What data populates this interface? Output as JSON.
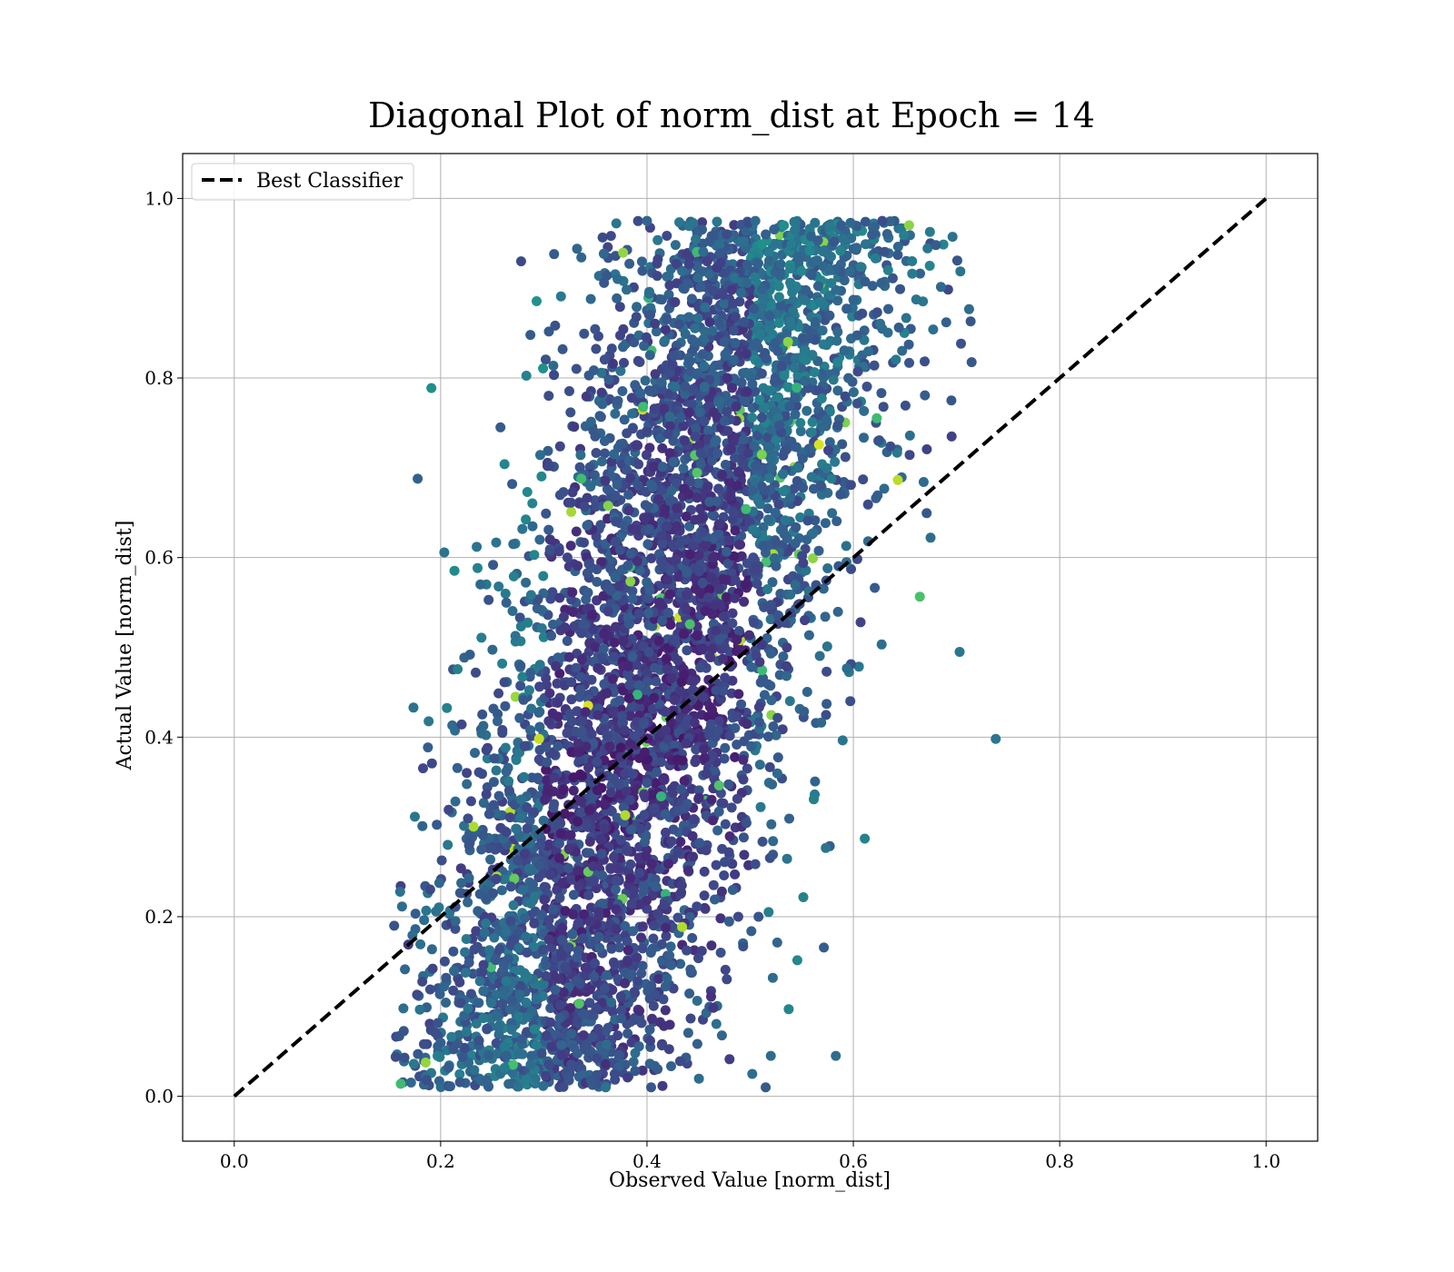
{
  "chart_data": {
    "type": "scatter",
    "title": "Diagonal Plot of norm_dist at Epoch = 14",
    "xlabel": "Observed Value [norm_dist]",
    "ylabel": "Actual Value [norm_dist]",
    "xlim": [
      -0.05,
      1.05
    ],
    "ylim": [
      -0.05,
      1.05
    ],
    "xticks": [
      "0.0",
      "0.2",
      "0.4",
      "0.6",
      "0.8",
      "1.0"
    ],
    "yticks": [
      "0.0",
      "0.2",
      "0.4",
      "0.6",
      "0.8",
      "1.0"
    ],
    "grid": true,
    "legend": {
      "placement": "top-left",
      "entries": [
        "Best Classifier"
      ]
    },
    "colormap": "viridis",
    "reference_line": {
      "name": "Best Classifier",
      "x": [
        0.0,
        1.0
      ],
      "y": [
        0.0,
        1.0
      ],
      "style": "dashed",
      "color": "#000000"
    },
    "scatter_summary": {
      "x_range": [
        0.155,
        0.74
      ],
      "y_range": [
        0.01,
        0.975
      ],
      "density_center": [
        0.43,
        0.5
      ]
    },
    "outlier_points": [
      {
        "x": 0.738,
        "y": 0.398
      },
      {
        "x": 0.703,
        "y": 0.495
      },
      {
        "x": 0.235,
        "y": 0.612
      },
      {
        "x": 0.258,
        "y": 0.745
      },
      {
        "x": 0.278,
        "y": 0.93
      },
      {
        "x": 0.31,
        "y": 0.938
      },
      {
        "x": 0.287,
        "y": 0.848
      },
      {
        "x": 0.36,
        "y": 0.01
      },
      {
        "x": 0.404,
        "y": 0.01
      },
      {
        "x": 0.515,
        "y": 0.01
      },
      {
        "x": 0.583,
        "y": 0.045
      },
      {
        "x": 0.52,
        "y": 0.045
      },
      {
        "x": 0.165,
        "y": 0.043
      },
      {
        "x": 0.178,
        "y": 0.047
      },
      {
        "x": 0.155,
        "y": 0.19
      },
      {
        "x": 0.575,
        "y": 0.588
      },
      {
        "x": 0.607,
        "y": 0.528
      },
      {
        "x": 0.628,
        "y": 0.975
      },
      {
        "x": 0.68,
        "y": 0.948
      },
      {
        "x": 0.4,
        "y": 0.975
      },
      {
        "x": 0.505,
        "y": 0.975
      },
      {
        "x": 0.695,
        "y": 0.775
      },
      {
        "x": 0.69,
        "y": 0.862
      }
    ]
  }
}
